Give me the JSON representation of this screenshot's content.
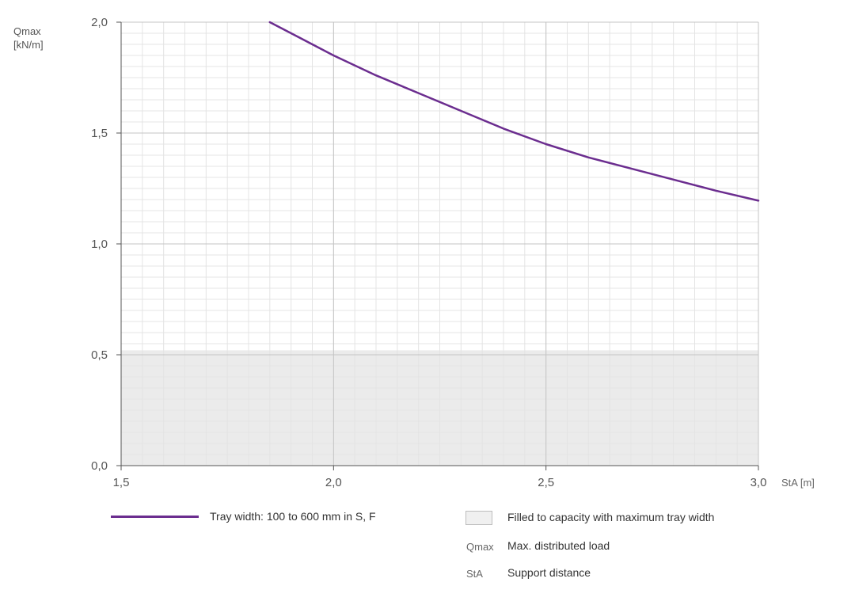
{
  "chart_data": {
    "type": "line",
    "ylabel_line1": "Qmax",
    "ylabel_line2": "[kN/m]",
    "xlabel": "StA [m]",
    "xlim": [
      1.5,
      3.0
    ],
    "ylim": [
      0.0,
      2.0
    ],
    "x_ticks": [
      "1,5",
      "2,0",
      "2,5",
      "3,0"
    ],
    "y_ticks": [
      "0,0",
      "0,5",
      "1,0",
      "1,5",
      "2,0"
    ],
    "grid": true,
    "shaded_region": {
      "y_from": 0.0,
      "y_to": 0.52,
      "color": "#ebebeb"
    },
    "series": [
      {
        "name": "Tray width: 100 to 600 mm in S, F",
        "color": "#6b2d8f",
        "x": [
          1.85,
          1.9,
          2.0,
          2.1,
          2.2,
          2.3,
          2.4,
          2.5,
          2.6,
          2.7,
          2.8,
          2.9,
          3.0
        ],
        "y": [
          2.0,
          1.95,
          1.85,
          1.76,
          1.68,
          1.6,
          1.52,
          1.45,
          1.39,
          1.34,
          1.29,
          1.24,
          1.195
        ]
      }
    ]
  },
  "legend": {
    "line_label": "Tray width: 100 to 600 mm in S, F",
    "fill_label": "Filled to capacity with maximum tray width",
    "qmax_key": "Qmax",
    "qmax_desc": "Max. distributed load",
    "sta_key": "StA",
    "sta_desc": "Support distance"
  }
}
